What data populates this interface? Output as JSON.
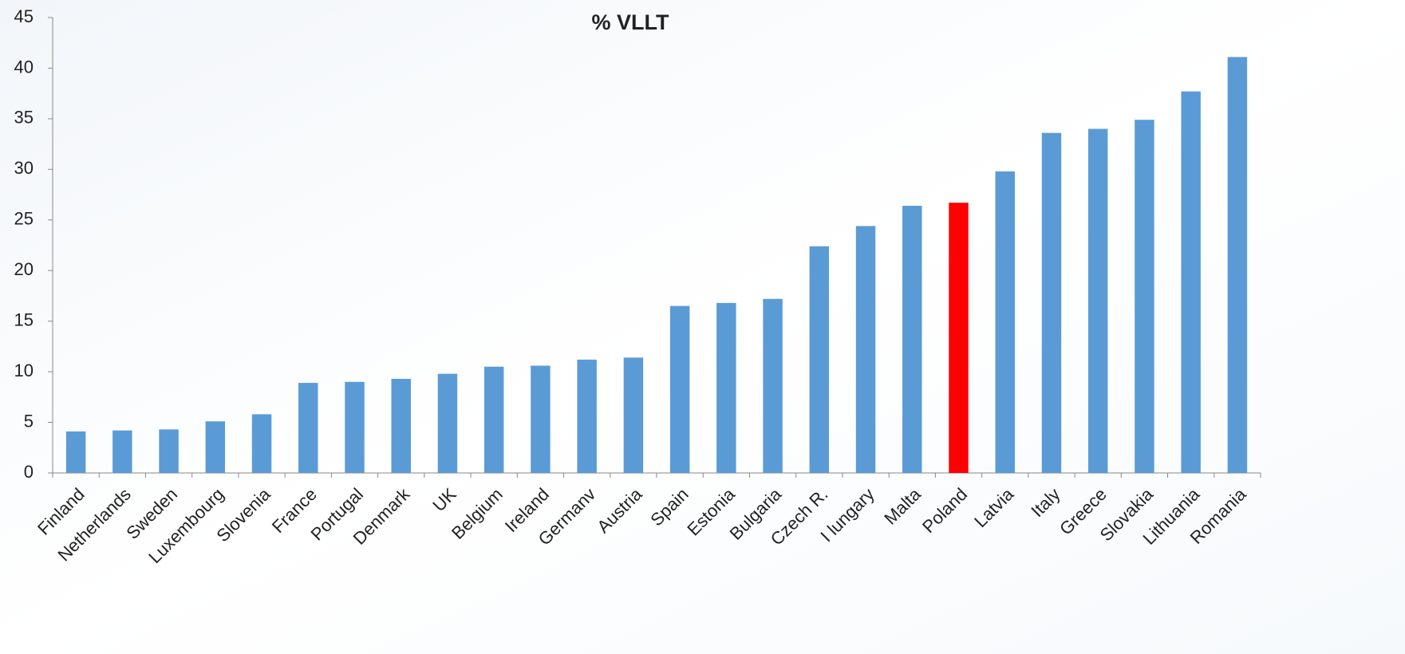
{
  "chart_data": {
    "type": "bar",
    "title": "% VLLT",
    "categories": [
      "Finland",
      "Netherlands",
      "Sweden",
      "Luxembourg",
      "Slovenia",
      "France",
      "Portugal",
      "Denmark",
      "UK",
      "Belgium",
      "Ireland",
      "Germanv",
      "Austria",
      "Spain",
      "Estonia",
      "Bulgaria",
      "Czech R.",
      "I lungary",
      "Malta",
      "Poland",
      "Latvia",
      "Italy",
      "Greece",
      "Slovakia",
      "Lithuania",
      "Romania"
    ],
    "values": [
      4.1,
      4.2,
      4.3,
      5.1,
      5.8,
      8.9,
      9.0,
      9.3,
      9.8,
      10.5,
      10.6,
      11.2,
      11.4,
      16.5,
      16.8,
      17.2,
      22.4,
      24.4,
      26.4,
      26.7,
      29.8,
      33.6,
      34.0,
      34.9,
      37.7,
      41.1
    ],
    "colors": [
      "#5b9bd5",
      "#5b9bd5",
      "#5b9bd5",
      "#5b9bd5",
      "#5b9bd5",
      "#5b9bd5",
      "#5b9bd5",
      "#5b9bd5",
      "#5b9bd5",
      "#5b9bd5",
      "#5b9bd5",
      "#5b9bd5",
      "#5b9bd5",
      "#5b9bd5",
      "#5b9bd5",
      "#5b9bd5",
      "#5b9bd5",
      "#5b9bd5",
      "#5b9bd5",
      "#ff0000",
      "#5b9bd5",
      "#5b9bd5",
      "#5b9bd5",
      "#5b9bd5",
      "#5b9bd5",
      "#5b9bd5"
    ],
    "ylim": [
      0,
      45
    ],
    "yticks": [
      0,
      5,
      10,
      15,
      20,
      25,
      30,
      35,
      40,
      45
    ],
    "grid": false
  }
}
